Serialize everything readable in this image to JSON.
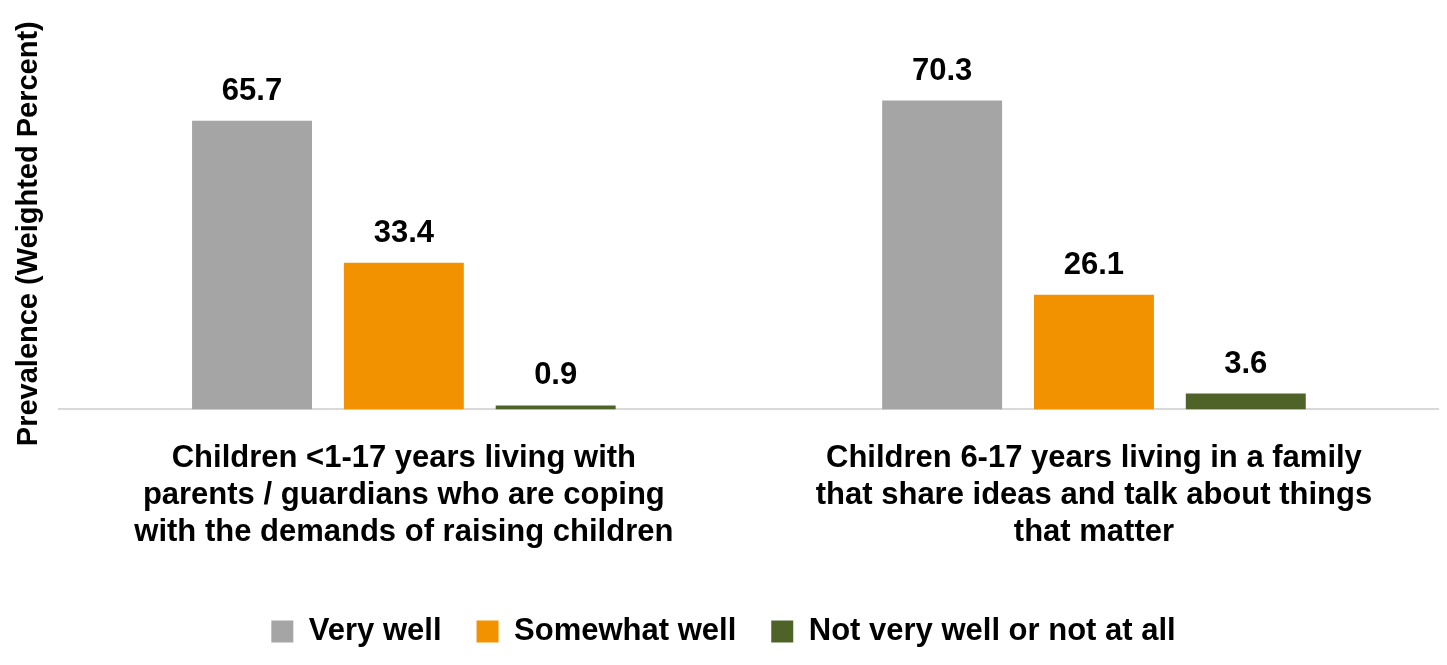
{
  "chart_data": {
    "type": "bar",
    "ylabel": "Prevalence (Weighted Percent)",
    "categories": [
      "Children <1-17 years living with parents / guardians who are coping with the demands of raising children",
      "Children 6-17 years living in a family that share ideas and talk about things that matter"
    ],
    "series": [
      {
        "name": "Very well",
        "color": "#a5a5a5",
        "values": [
          65.7,
          70.3
        ]
      },
      {
        "name": "Somewhat well",
        "color": "#f39200",
        "values": [
          33.4,
          26.1
        ]
      },
      {
        "name": "Not very well or not at all",
        "color": "#4f6228",
        "values": [
          0.9,
          3.6
        ]
      }
    ],
    "data_labels": true,
    "grid": false,
    "legend": "bottom"
  }
}
